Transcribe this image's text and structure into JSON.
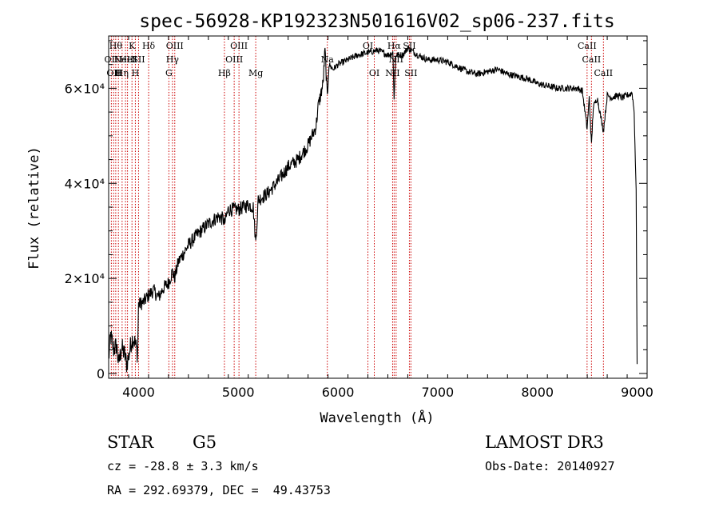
{
  "chart_data": {
    "type": "line",
    "title": "spec-56928-KP192323N501616V02_sp06-237.fits",
    "xlabel": "Wavelength (Å)",
    "ylabel": "Flux (relative)",
    "xlim": [
      3700,
      9100
    ],
    "ylim": [
      -1000,
      71000
    ],
    "x_ticks": [
      4000,
      5000,
      6000,
      7000,
      8000,
      9000
    ],
    "y_ticks": [
      {
        "value": 0,
        "label": "0"
      },
      {
        "value": 20000,
        "label": "2×10⁴"
      },
      {
        "value": 40000,
        "label": "4×10⁴"
      },
      {
        "value": 60000,
        "label": "6×10⁴"
      }
    ],
    "series": [
      {
        "x": [
          3700,
          3720,
          3750,
          3780,
          3800,
          3830,
          3860,
          3880,
          3900,
          3930,
          3950,
          3970,
          3990,
          4000,
          4050,
          4100,
          4150,
          4200,
          4250,
          4300,
          4340,
          4360,
          4400,
          4500,
          4600,
          4700,
          4800,
          4850,
          4861,
          4900,
          5000,
          5100,
          5150,
          5175,
          5200,
          5300,
          5400,
          5500,
          5600,
          5700,
          5780,
          5800,
          5850,
          5870,
          5893,
          5910,
          5950,
          6000,
          6100,
          6200,
          6300,
          6400,
          6500,
          6550,
          6563,
          6580,
          6650,
          6700,
          6800,
          6900,
          7000,
          7100,
          7200,
          7300,
          7400,
          7500,
          7600,
          7700,
          7800,
          7900,
          8000,
          8100,
          8200,
          8300,
          8400,
          8450,
          8498,
          8520,
          8542,
          8560,
          8600,
          8662,
          8700,
          8750,
          8800,
          8850,
          8900,
          8950,
          8970,
          8990,
          9000
        ],
        "y": [
          3000,
          8000,
          5000,
          6000,
          2000,
          5500,
          4000,
          2000,
          3500,
          7000,
          7500,
          6000,
          4000,
          14500,
          15000,
          16500,
          17500,
          16000,
          18000,
          19000,
          21500,
          20000,
          23500,
          27000,
          29500,
          31500,
          33000,
          32500,
          31500,
          34500,
          34500,
          35500,
          35000,
          27500,
          36500,
          38000,
          40500,
          43500,
          45000,
          48000,
          52000,
          56000,
          61000,
          68000,
          58000,
          65000,
          64000,
          65000,
          66000,
          67000,
          67500,
          68000,
          67000,
          67500,
          58000,
          67000,
          67000,
          68500,
          67000,
          66000,
          66000,
          65500,
          64500,
          63500,
          63000,
          63500,
          64000,
          63000,
          62500,
          62000,
          61000,
          60500,
          60000,
          60000,
          60000,
          59500,
          51500,
          58000,
          48000,
          56000,
          58000,
          51000,
          58500,
          58000,
          58500,
          58000,
          58500,
          59000,
          55000,
          38000,
          2000
        ]
      }
    ],
    "line_markers": [
      {
        "x": 3727,
        "label": "OII",
        "row": 1
      },
      {
        "x": 3750,
        "label": "OII",
        "row": 2
      },
      {
        "x": 3771,
        "label": "Hθ",
        "row": 0
      },
      {
        "x": 3798,
        "label": "H",
        "row": 2
      },
      {
        "x": 3835,
        "label": "Hη",
        "row": 2
      },
      {
        "x": 3869,
        "label": "NeIII",
        "row": 1
      },
      {
        "x": 3889,
        "label": "HeI",
        "row": 1
      },
      {
        "x": 3934,
        "label": "K",
        "row": 0
      },
      {
        "x": 3968,
        "label": "H",
        "row": 2
      },
      {
        "x": 4000,
        "label": "SII",
        "row": 1
      },
      {
        "x": 4101,
        "label": "Hδ",
        "row": 0
      },
      {
        "x": 4304,
        "label": "G",
        "row": 2
      },
      {
        "x": 4340,
        "label": "Hγ",
        "row": 1
      },
      {
        "x": 4363,
        "label": "OIII",
        "row": 0
      },
      {
        "x": 4861,
        "label": "Hβ",
        "row": 2
      },
      {
        "x": 4959,
        "label": "OIII",
        "row": 1
      },
      {
        "x": 5007,
        "label": "OIII",
        "row": 0
      },
      {
        "x": 5175,
        "label": "Mg",
        "row": 2
      },
      {
        "x": 5893,
        "label": "Na",
        "row": 1
      },
      {
        "x": 6300,
        "label": "OI",
        "row": 0
      },
      {
        "x": 6364,
        "label": "OI",
        "row": 2
      },
      {
        "x": 6548,
        "label": "NII",
        "row": 2
      },
      {
        "x": 6563,
        "label": "Hα",
        "row": 0
      },
      {
        "x": 6583,
        "label": "NII",
        "row": 1
      },
      {
        "x": 6716,
        "label": "SII",
        "row": 0
      },
      {
        "x": 6731,
        "label": "SII",
        "row": 2
      },
      {
        "x": 8498,
        "label": "CaII",
        "row": 0
      },
      {
        "x": 8542,
        "label": "CaII",
        "row": 1
      },
      {
        "x": 8662,
        "label": "CaII",
        "row": 2
      }
    ],
    "colors": {
      "spectrum": "#000000",
      "markers": "#cc0000",
      "axes": "#000000"
    }
  },
  "info": {
    "object_type": "STAR",
    "subclass": "G5",
    "survey": "LAMOST DR3",
    "redshift": "cz = -28.8 ± 3.3 km/s",
    "obs_date": "Obs-Date: 20140927",
    "coords": "RA = 292.69379, DEC =  49.43753"
  }
}
